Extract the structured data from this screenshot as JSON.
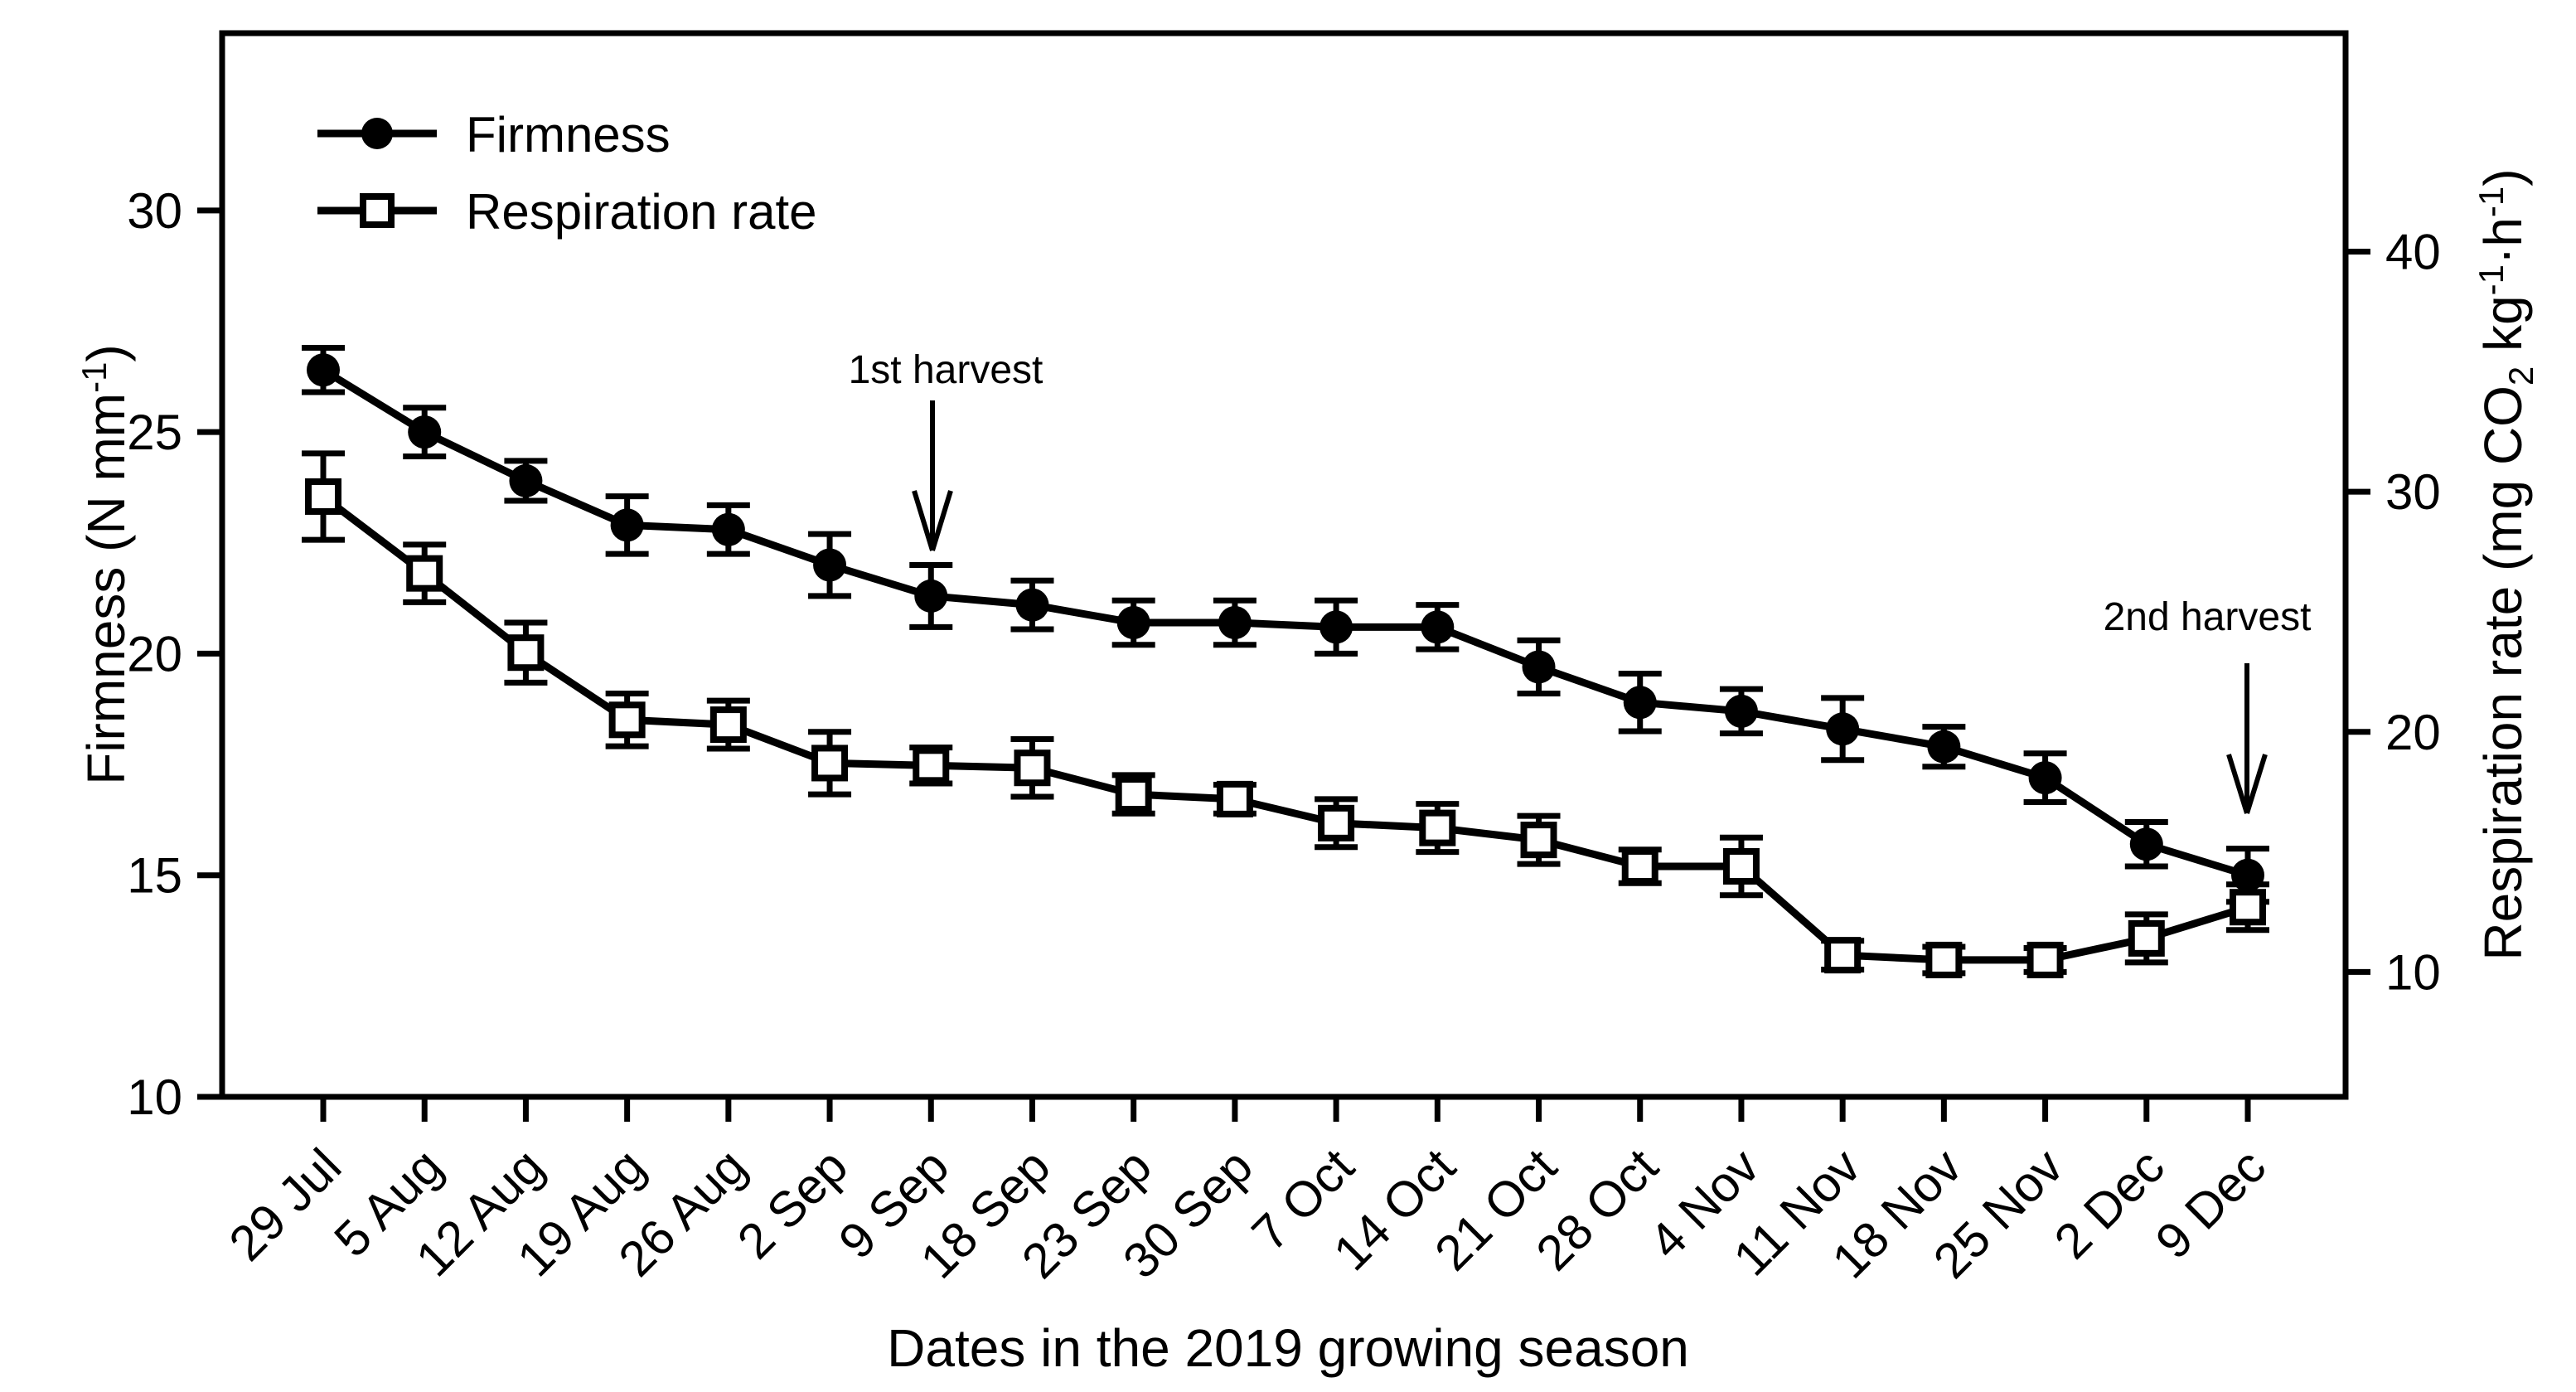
{
  "figure": {
    "background": "#ffffff",
    "ink": "#000000"
  },
  "legend": {
    "position": "upper-left",
    "items": [
      {
        "label": "Firmness",
        "marker": "filled-circle"
      },
      {
        "label": "Respiration rate",
        "marker": "open-square"
      }
    ]
  },
  "annotations": [
    {
      "text": "1st harvest",
      "points_to_category": "9 Sep"
    },
    {
      "text": "2nd harvest",
      "points_to_category": "9 Dec"
    }
  ],
  "chart_data": {
    "type": "line",
    "title": "",
    "xlabel": "Dates in the 2019 growing season",
    "grid": false,
    "legend_position": "upper-left",
    "categories": [
      "29 Jul",
      "5 Aug",
      "12 Aug",
      "19 Aug",
      "26 Aug",
      "2 Sep",
      "9 Sep",
      "18 Sep",
      "23 Sep",
      "30 Sep",
      "7 Oct",
      "14 Oct",
      "21 Oct",
      "28 Oct",
      "4 Nov",
      "11 Nov",
      "18 Nov",
      "25 Nov",
      "2 Dec",
      "9 Dec"
    ],
    "series": [
      {
        "name": "Firmness",
        "axis": "left",
        "marker": "filled-circle",
        "color": "#000000",
        "values": [
          26.4,
          25.0,
          23.9,
          22.9,
          22.8,
          22.0,
          21.3,
          21.1,
          20.7,
          20.7,
          20.6,
          20.6,
          19.7,
          18.9,
          18.7,
          18.3,
          17.9,
          17.2,
          15.7,
          15.0
        ],
        "errors": [
          0.5,
          0.55,
          0.45,
          0.65,
          0.55,
          0.7,
          0.7,
          0.55,
          0.5,
          0.5,
          0.6,
          0.5,
          0.6,
          0.65,
          0.5,
          0.7,
          0.45,
          0.55,
          0.5,
          0.6
        ]
      },
      {
        "name": "Respiration rate",
        "axis": "right",
        "marker": "open-square",
        "color": "#000000",
        "values": [
          29.8,
          26.6,
          23.3,
          20.5,
          20.3,
          18.7,
          18.6,
          18.5,
          17.4,
          17.2,
          16.2,
          16.0,
          15.5,
          14.4,
          14.4,
          10.7,
          10.5,
          10.5,
          11.4,
          12.7
        ],
        "errors": [
          1.8,
          1.2,
          1.25,
          1.1,
          1.0,
          1.3,
          0.75,
          1.2,
          0.8,
          0.6,
          1.0,
          1.0,
          1.0,
          0.7,
          1.2,
          0.6,
          0.55,
          0.5,
          1.0,
          0.95
        ]
      }
    ],
    "left_axis": {
      "title": "Firmness (N mm-1)",
      "title_segments": [
        {
          "t": "Firmness (N mm"
        },
        {
          "t": "-1",
          "v": "sup"
        },
        {
          "t": ")"
        }
      ],
      "ticks": [
        10,
        15,
        20,
        25,
        30
      ],
      "range": [
        10,
        34
      ]
    },
    "right_axis": {
      "title": "Respiration rate (mg CO2 kg-1·h-1)",
      "title_segments": [
        {
          "t": "Respiration rate (mg CO"
        },
        {
          "t": "2",
          "v": "sub"
        },
        {
          "t": " kg"
        },
        {
          "t": "-1",
          "v": "sup"
        },
        {
          "t": "·h"
        },
        {
          "t": "-1",
          "v": "sup"
        },
        {
          "t": ")"
        }
      ],
      "ticks": [
        10,
        20,
        30,
        40
      ],
      "range": [
        4.8,
        49.1
      ]
    }
  }
}
